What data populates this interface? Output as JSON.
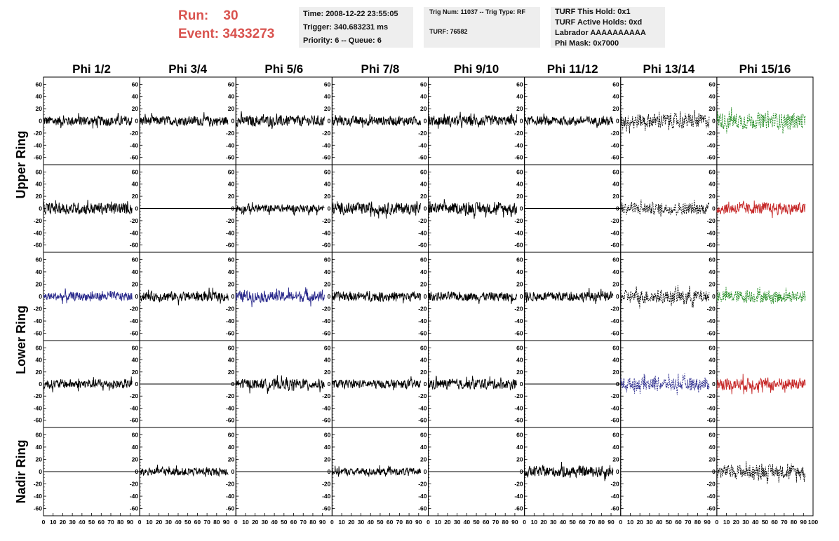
{
  "header": {
    "run_label": "Run:",
    "run_value": "30",
    "event_label": "Event:",
    "event_value": "3433273"
  },
  "info_box_1": {
    "time": "Time: 2008-12-22 23:55:05",
    "trigger": "Trigger: 340.683231 ms",
    "priority": "Priority: 6 -- Queue: 6"
  },
  "info_box_2": {
    "trig": "Trig Num: 11037 -- Trig Type: RF",
    "turf": "TURF: 76582"
  },
  "info_box_3": {
    "this_hold": "TURF This Hold: 0x1",
    "active_holds": "TURF Active Holds: 0xd",
    "labrador": "Labrador AAAAAAAAAA",
    "phi_mask": "Phi Mask: 0x7000"
  },
  "colors": {
    "header_red": "#d9534f",
    "info_bg": "#eeeeee",
    "trace_black": "#000000",
    "trace_blue": "#2a2a8c",
    "trace_green": "#1f8a1f",
    "trace_red": "#c62828"
  },
  "chart_data": {
    "type": "line",
    "columns": [
      "Phi 1/2",
      "Phi 3/4",
      "Phi 5/6",
      "Phi 7/8",
      "Phi 9/10",
      "Phi 11/12",
      "Phi 13/14",
      "Phi 15/16"
    ],
    "rows": [
      "Upper Ring",
      "Lower Ring",
      "Nadir Ring"
    ],
    "xlim": [
      0,
      100
    ],
    "ylim": [
      -65,
      65
    ],
    "x_ticks": [
      "0",
      "10",
      "20",
      "30",
      "40",
      "50",
      "60",
      "70",
      "80",
      "90",
      "100"
    ],
    "y_ticks": [
      "60",
      "40",
      "20",
      "0",
      "-20",
      "-40",
      "-60"
    ],
    "x_range": [
      0,
      92
    ],
    "panels": [
      {
        "row": 0,
        "col": 0,
        "color": "black",
        "style": "solid",
        "amp": 14
      },
      {
        "row": 0,
        "col": 1,
        "color": "black",
        "style": "solid",
        "amp": 13
      },
      {
        "row": 0,
        "col": 2,
        "color": "black",
        "style": "solid",
        "amp": 15
      },
      {
        "row": 0,
        "col": 3,
        "color": "black",
        "style": "solid",
        "amp": 13
      },
      {
        "row": 0,
        "col": 4,
        "color": "black",
        "style": "solid",
        "amp": 14
      },
      {
        "row": 0,
        "col": 5,
        "color": "black",
        "style": "solid",
        "amp": 12
      },
      {
        "row": 0,
        "col": 6,
        "color": "black",
        "style": "dashed",
        "amp": 20
      },
      {
        "row": 0,
        "col": 7,
        "color": "green",
        "style": "dashed",
        "amp": 22
      },
      {
        "row": 1,
        "col": 0,
        "color": "black",
        "style": "solid",
        "amp": 16
      },
      {
        "row": 1,
        "col": 1,
        "color": "black",
        "style": "flat",
        "amp": 0
      },
      {
        "row": 1,
        "col": 2,
        "color": "black",
        "style": "solid",
        "amp": 11
      },
      {
        "row": 1,
        "col": 3,
        "color": "black",
        "style": "solid",
        "amp": 16
      },
      {
        "row": 1,
        "col": 4,
        "color": "black",
        "style": "solid",
        "amp": 15
      },
      {
        "row": 1,
        "col": 5,
        "color": "black",
        "style": "flat",
        "amp": 0
      },
      {
        "row": 1,
        "col": 6,
        "color": "black",
        "style": "dashed",
        "amp": 16
      },
      {
        "row": 1,
        "col": 7,
        "color": "red",
        "style": "solid",
        "amp": 16
      },
      {
        "row": 2,
        "col": 0,
        "color": "blue",
        "style": "solid",
        "amp": 12
      },
      {
        "row": 2,
        "col": 1,
        "color": "black",
        "style": "solid",
        "amp": 13
      },
      {
        "row": 2,
        "col": 2,
        "color": "blue",
        "style": "solid",
        "amp": 15
      },
      {
        "row": 2,
        "col": 3,
        "color": "black",
        "style": "solid",
        "amp": 13
      },
      {
        "row": 2,
        "col": 4,
        "color": "black",
        "style": "solid",
        "amp": 12
      },
      {
        "row": 2,
        "col": 5,
        "color": "black",
        "style": "solid",
        "amp": 13
      },
      {
        "row": 2,
        "col": 6,
        "color": "black",
        "style": "dashed",
        "amp": 18
      },
      {
        "row": 2,
        "col": 7,
        "color": "green",
        "style": "dashed",
        "amp": 17
      },
      {
        "row": 3,
        "col": 0,
        "color": "black",
        "style": "solid",
        "amp": 13
      },
      {
        "row": 3,
        "col": 1,
        "color": "black",
        "style": "flat",
        "amp": 0
      },
      {
        "row": 3,
        "col": 2,
        "color": "black",
        "style": "solid",
        "amp": 14
      },
      {
        "row": 3,
        "col": 3,
        "color": "black",
        "style": "solid",
        "amp": 12
      },
      {
        "row": 3,
        "col": 4,
        "color": "black",
        "style": "solid",
        "amp": 14
      },
      {
        "row": 3,
        "col": 5,
        "color": "black",
        "style": "flat",
        "amp": 0
      },
      {
        "row": 3,
        "col": 6,
        "color": "blue",
        "style": "dashed",
        "amp": 18
      },
      {
        "row": 3,
        "col": 7,
        "color": "red",
        "style": "solid",
        "amp": 17
      },
      {
        "row": 4,
        "col": 0,
        "color": "black",
        "style": "flat",
        "amp": 0
      },
      {
        "row": 4,
        "col": 1,
        "color": "black",
        "style": "solid",
        "amp": 11
      },
      {
        "row": 4,
        "col": 2,
        "color": "black",
        "style": "flat",
        "amp": 0
      },
      {
        "row": 4,
        "col": 3,
        "color": "black",
        "style": "solid",
        "amp": 10
      },
      {
        "row": 4,
        "col": 4,
        "color": "black",
        "style": "flat",
        "amp": 0
      },
      {
        "row": 4,
        "col": 5,
        "color": "black",
        "style": "solid",
        "amp": 15
      },
      {
        "row": 4,
        "col": 6,
        "color": "black",
        "style": "flat",
        "amp": 0
      },
      {
        "row": 4,
        "col": 7,
        "color": "black",
        "style": "dashed",
        "amp": 18
      }
    ]
  }
}
